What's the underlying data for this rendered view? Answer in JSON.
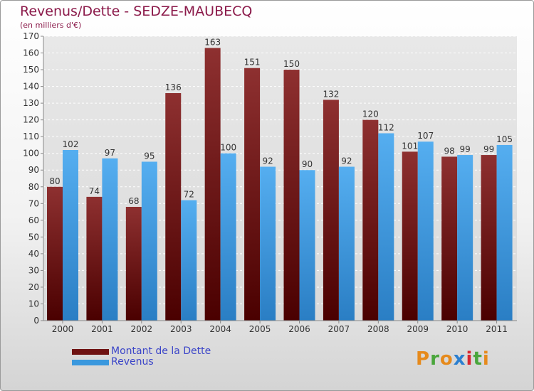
{
  "chart_data": {
    "type": "bar",
    "title": "Revenus/Dette - SEDZE-MAUBECQ",
    "subtitle": "(en milliers d'€)",
    "categories": [
      "2000",
      "2001",
      "2002",
      "2003",
      "2004",
      "2005",
      "2006",
      "2007",
      "2008",
      "2009",
      "2010",
      "2011"
    ],
    "series": [
      {
        "name": "Montant de la Dette",
        "color": "#6e1212",
        "values": [
          80,
          74,
          68,
          136,
          163,
          151,
          150,
          132,
          120,
          101,
          98,
          99
        ]
      },
      {
        "name": "Revenus",
        "color": "#3a98de",
        "values": [
          102,
          97,
          95,
          72,
          100,
          92,
          90,
          92,
          112,
          107,
          99,
          105
        ]
      }
    ],
    "ylim": [
      0,
      170
    ],
    "ytick_step": 10,
    "grid": true,
    "legend_position": "bottom-left"
  },
  "logo": {
    "text": "Proxiti",
    "letter_colors": [
      "#e68a1c",
      "#4aa63c",
      "#e68a1c",
      "#2b7fd0",
      "#d8262f",
      "#4aa63c",
      "#e68a1c"
    ]
  }
}
